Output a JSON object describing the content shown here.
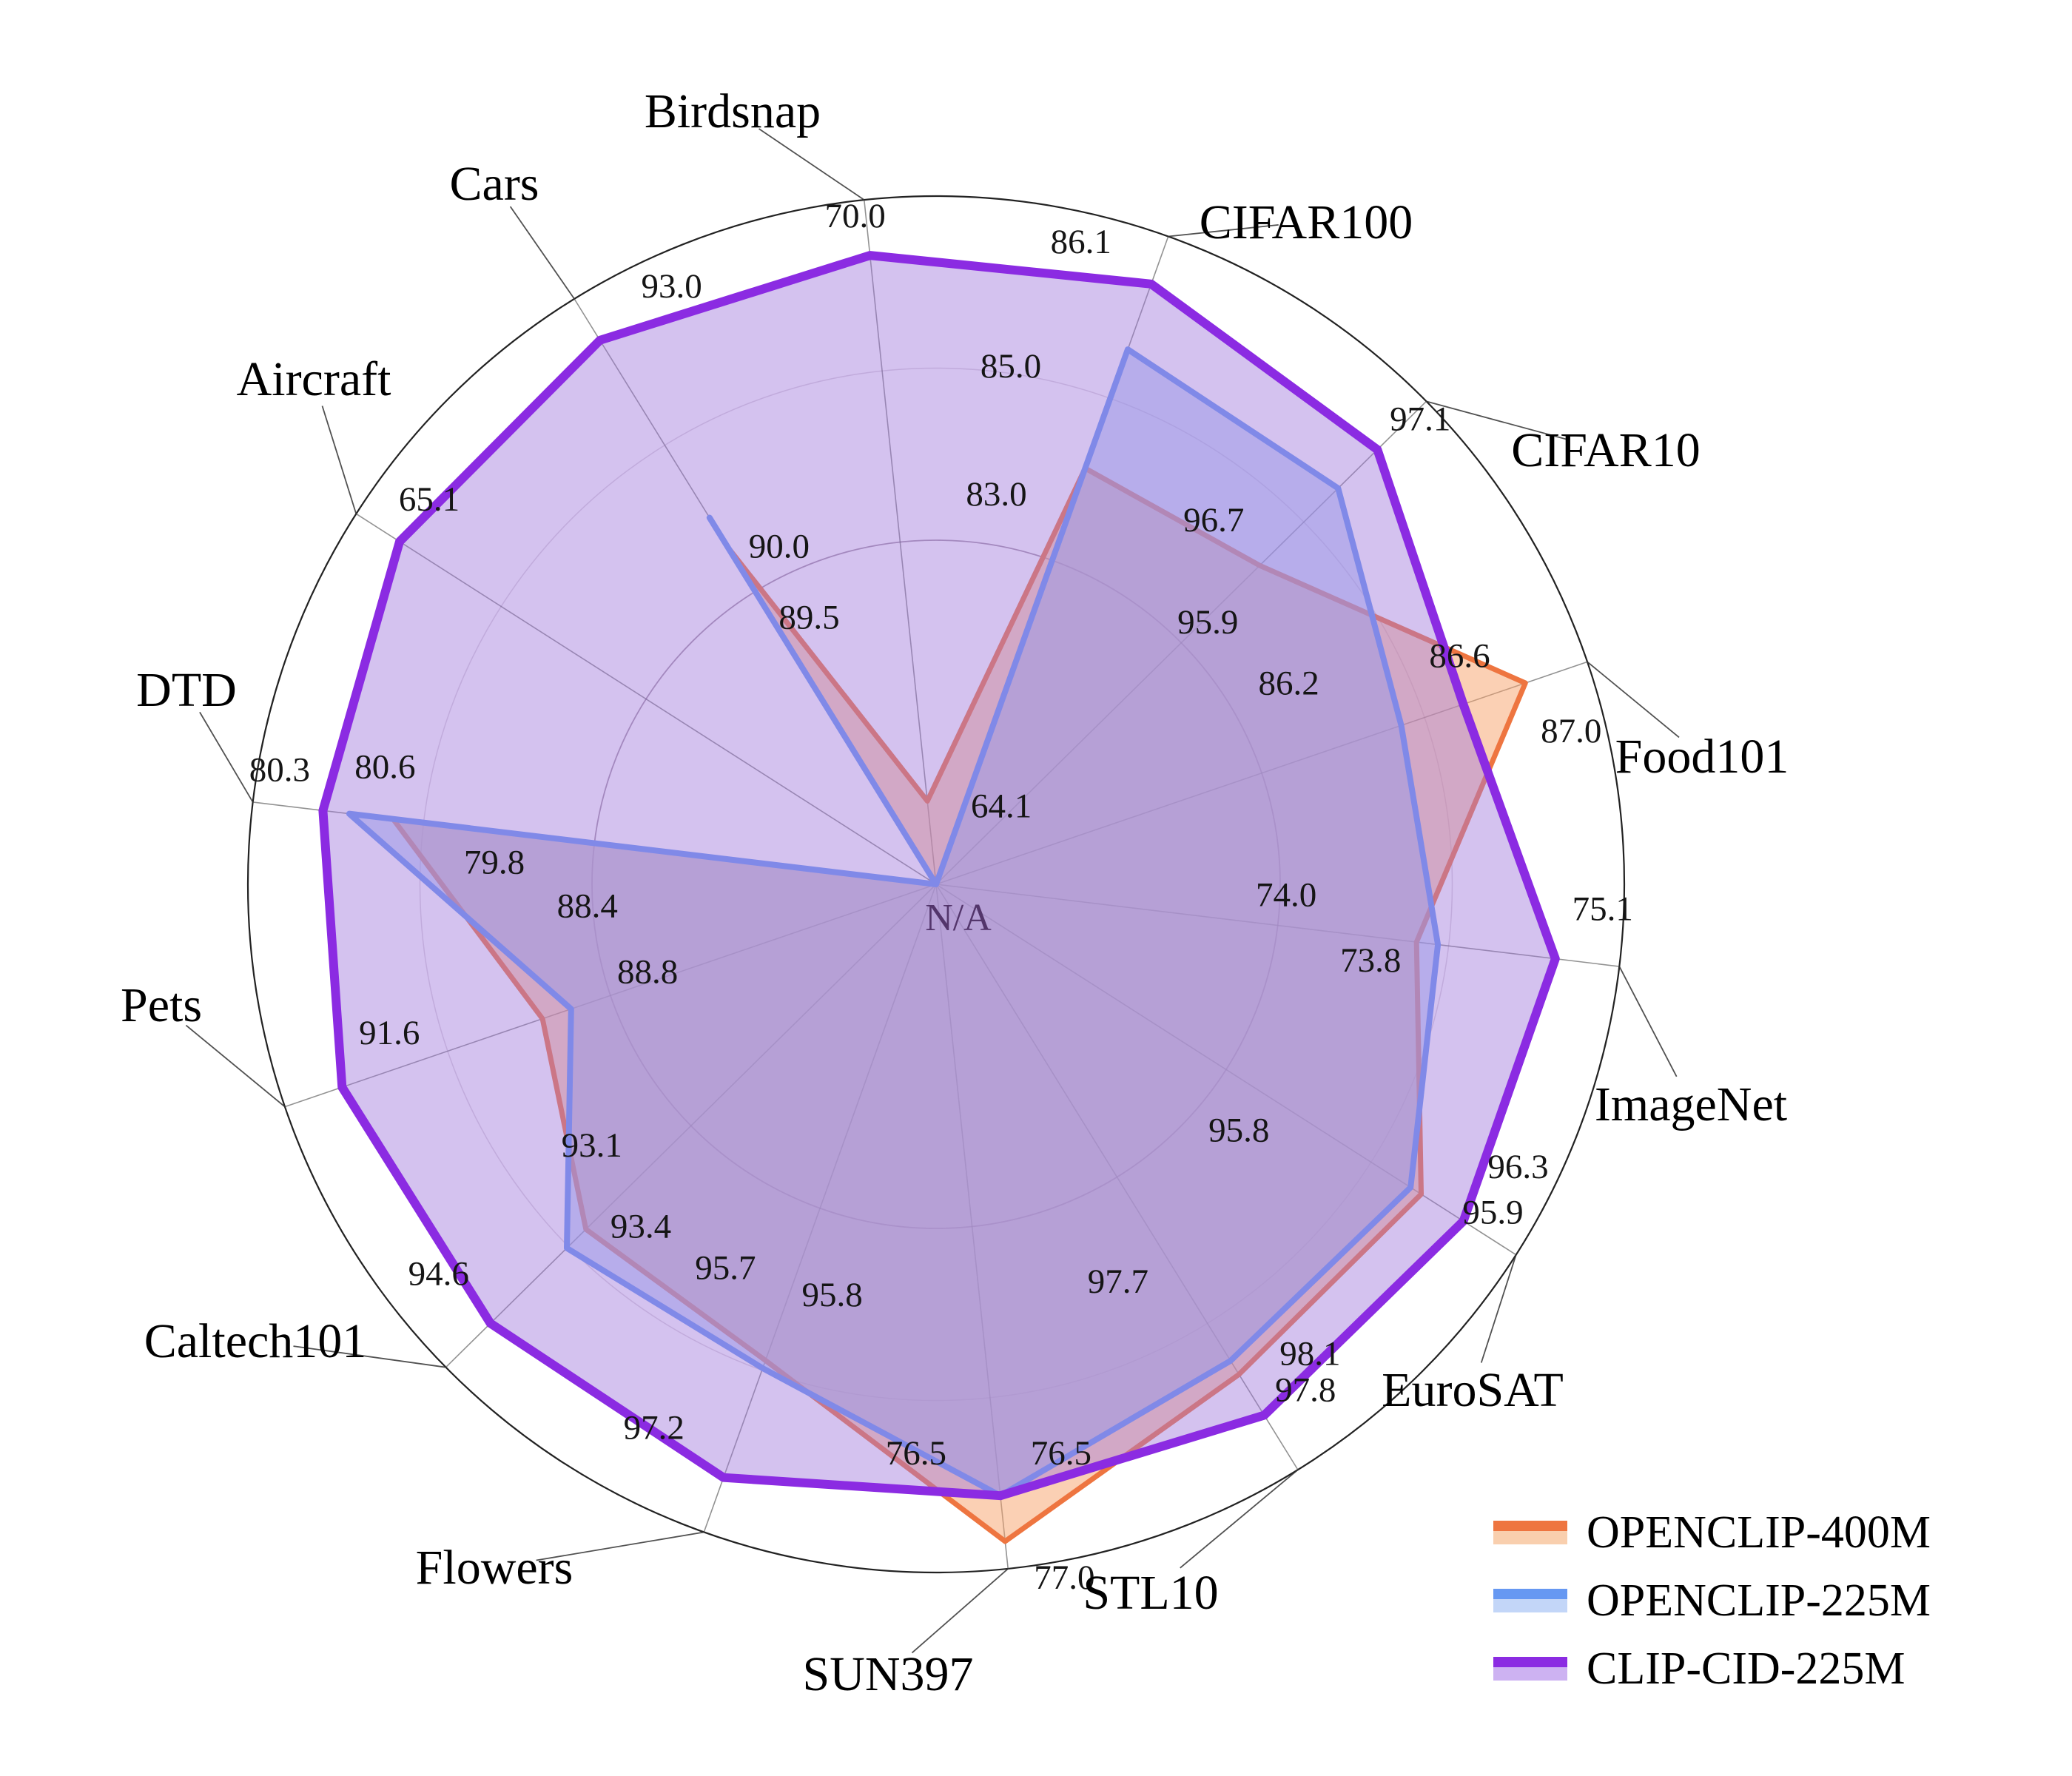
{
  "chart_data": {
    "type": "radar",
    "categories": [
      "Birdsnap",
      "CIFAR100",
      "CIFAR10",
      "Food101",
      "ImageNet",
      "EuroSAT",
      "STL10",
      "SUN397",
      "Flowers",
      "Caltech101",
      "Pets",
      "DTD",
      "Aircraft",
      "Cars"
    ],
    "series": [
      {
        "name": "OPENCLIP-400M",
        "color": "#ee7540",
        "fill": "#f7a269",
        "fill_opacity": 0.5,
        "stroke_width": 7,
        "values": [
          64.1,
          83.0,
          95.9,
          87.0,
          73.8,
          95.9,
          97.8,
          77.0,
          95.7,
          93.1,
          88.8,
          79.8,
          null,
          89.5
        ]
      },
      {
        "name": "OPENCLIP-225M",
        "color": "#6698f2",
        "fill": "#96b4f0",
        "fill_opacity": 0.5,
        "stroke_width": 8,
        "values": [
          null,
          85.0,
          96.7,
          86.2,
          74.0,
          95.8,
          97.7,
          76.5,
          95.8,
          93.4,
          88.4,
          80.3,
          null,
          90.0
        ]
      },
      {
        "name": "CLIP-CID-225M",
        "color": "#8b2be2",
        "fill": "#a078dc",
        "fill_opacity": 0.45,
        "stroke_width": 12,
        "values": [
          70.0,
          86.1,
          97.1,
          86.6,
          75.1,
          96.3,
          98.1,
          76.5,
          97.2,
          94.6,
          91.6,
          80.6,
          65.1,
          93.0
        ]
      }
    ],
    "value_label_format": "1-decimal",
    "na_text": "N/A",
    "axis_ranges": [
      [
        63.2,
        70.6
      ],
      [
        76.0,
        86.9
      ],
      [
        92.6,
        97.6
      ],
      [
        83.2,
        87.4
      ],
      [
        69.3,
        75.7
      ],
      [
        91.3,
        96.8
      ],
      [
        94.2,
        98.5
      ],
      [
        69.8,
        77.3
      ],
      [
        89.6,
        97.9
      ],
      [
        87.6,
        95.3
      ],
      [
        83.3,
        92.4
      ],
      [
        73.6,
        81.4
      ],
      [
        54.0,
        66.0
      ],
      [
        83.8,
        93.7
      ]
    ],
    "grid": {
      "outer_circle": true,
      "inner_circles": [
        0.5,
        0.75
      ],
      "spokes": true
    },
    "legend_position": "bottom-right"
  },
  "legend": {
    "items": [
      {
        "label": "OPENCLIP-400M",
        "color": "#ee7540",
        "fill": "#f9cfae"
      },
      {
        "label": "OPENCLIP-225M",
        "color": "#6698f2",
        "fill": "#c3d6f8"
      },
      {
        "label": "CLIP-CID-225M",
        "color": "#8b2be2",
        "fill": "#cdb2f2"
      }
    ]
  }
}
